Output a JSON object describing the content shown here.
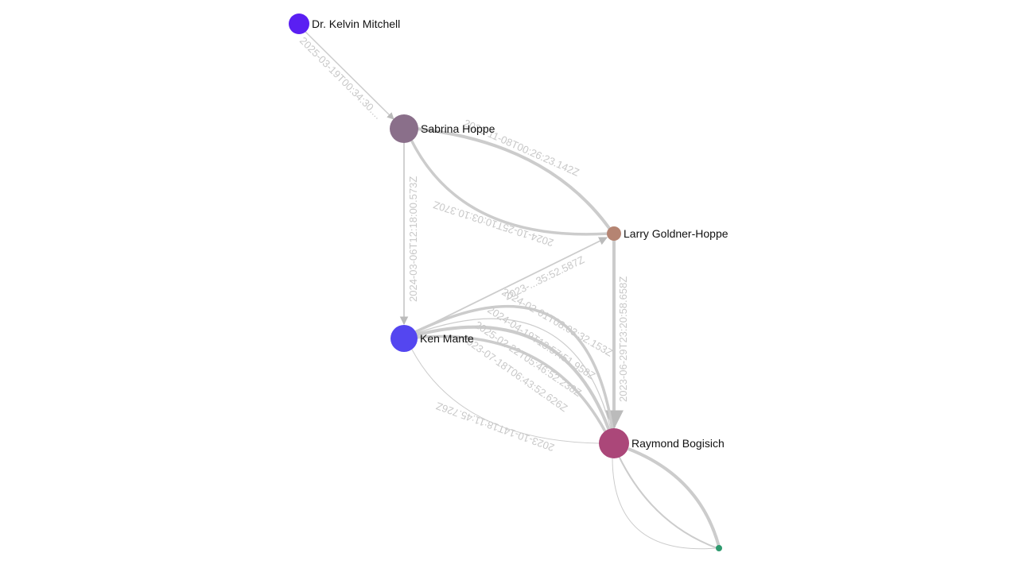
{
  "graph": {
    "nodes": [
      {
        "id": "kelvin",
        "label": "Dr. Kelvin Mitchell",
        "color": "#5a1ff2",
        "size": "medium"
      },
      {
        "id": "sabrina",
        "label": "Sabrina Hoppe",
        "color": "#8a6f8a",
        "size": "large"
      },
      {
        "id": "larry",
        "label": "Larry Goldner-Hoppe",
        "color": "#b58472",
        "size": "small"
      },
      {
        "id": "ken",
        "label": "Ken Mante",
        "color": "#5446f0",
        "size": "large"
      },
      {
        "id": "raymond",
        "label": "Raymond Bogisich",
        "color": "#ab4779",
        "size": "large"
      },
      {
        "id": "unnamed",
        "label": "",
        "color": "#2e9a6e",
        "size": "tiny"
      }
    ],
    "edges": [
      {
        "source": "kelvin",
        "target": "sabrina",
        "label": "2025-03-19T00:34:30...."
      },
      {
        "source": "sabrina",
        "target": "ken",
        "label": "2024-03-06T12:18:00.573Z"
      },
      {
        "source": "sabrina",
        "target": "larry",
        "label": "2023-11-08T00:26:23.142Z"
      },
      {
        "source": "larry",
        "target": "sabrina",
        "label": "2024-10-25T10:03:10.370Z"
      },
      {
        "source": "ken",
        "target": "larry",
        "label": "2023-...35:52.587Z"
      },
      {
        "source": "larry",
        "target": "raymond",
        "label": "2023-06-29T23:20:58.658Z"
      },
      {
        "source": "ken",
        "target": "raymond",
        "label": "2024-02-01T08:03:32.153Z"
      },
      {
        "source": "ken",
        "target": "raymond",
        "label": "2024-04-19T13:57:51.958Z"
      },
      {
        "source": "ken",
        "target": "raymond",
        "label": "2025-02-22T05:46:52.238Z"
      },
      {
        "source": "ken",
        "target": "raymond",
        "label": "2023-07-18T06:43:52.626Z"
      },
      {
        "source": "raymond",
        "target": "ken",
        "label": "2023-10-14T18:11:45.726Z"
      },
      {
        "source": "raymond",
        "target": "unnamed",
        "label": ""
      },
      {
        "source": "raymond",
        "target": "unnamed",
        "label": ""
      },
      {
        "source": "unnamed",
        "target": "raymond",
        "label": ""
      }
    ]
  }
}
